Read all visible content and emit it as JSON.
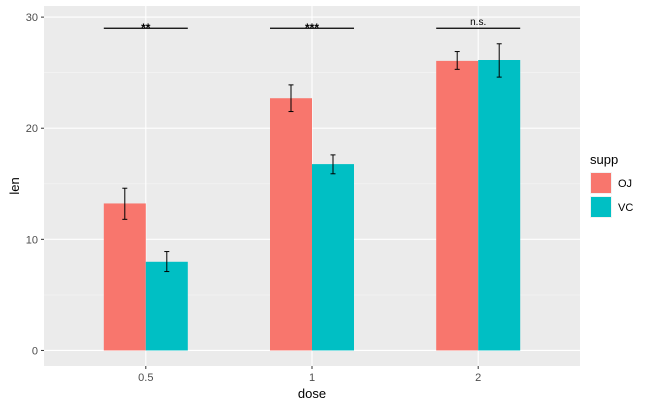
{
  "chart_data": {
    "type": "bar",
    "xlabel": "dose",
    "ylabel": "len",
    "categories": [
      "0.5",
      "1",
      "2"
    ],
    "ylim": [
      -1.4,
      31
    ],
    "yticks": [
      0,
      10,
      20,
      30
    ],
    "grid": true,
    "legend": {
      "title": "supp",
      "position": "right"
    },
    "series": [
      {
        "name": "OJ",
        "color": "#F8766D",
        "values": [
          13.23,
          22.7,
          26.06
        ],
        "err_low": [
          11.8,
          21.5,
          25.3
        ],
        "err_high": [
          14.6,
          23.9,
          26.9
        ]
      },
      {
        "name": "VC",
        "color": "#00BFC4",
        "values": [
          7.98,
          16.77,
          26.14
        ],
        "err_low": [
          7.1,
          15.9,
          24.6
        ],
        "err_high": [
          8.9,
          17.6,
          27.6
        ]
      }
    ],
    "annotations": [
      {
        "category": "0.5",
        "y": 29,
        "label": "**"
      },
      {
        "category": "1",
        "y": 29,
        "label": "***"
      },
      {
        "category": "2",
        "y": 29,
        "label": "n.s."
      }
    ]
  }
}
